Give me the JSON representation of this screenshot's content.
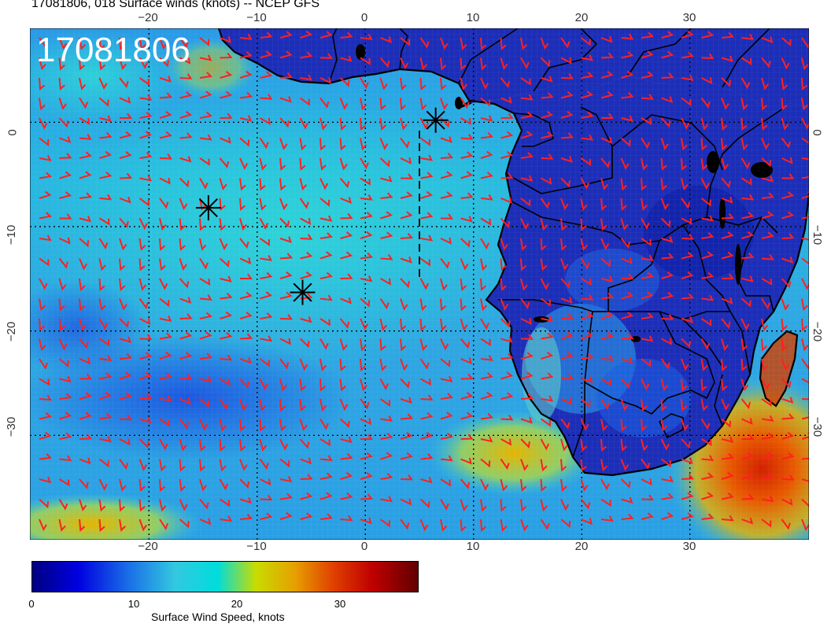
{
  "title": "17081806, 018 Surface winds (knots) -- NCEP GFS",
  "stamp": "17081806",
  "top_ticks": [
    "−20",
    "−10",
    "0",
    "10",
    "20",
    "30"
  ],
  "bottom_ticks": [
    "−20",
    "−10",
    "0",
    "10",
    "20",
    "30"
  ],
  "left_ticks": [
    "0",
    "−10",
    "−20",
    "−30"
  ],
  "right_ticks": [
    "0",
    "−10",
    "−20",
    "−30"
  ],
  "colorbar": {
    "label": "Surface Wind Speed, knots",
    "ticks": [
      "0",
      "10",
      "20",
      "30"
    ],
    "min": 0,
    "max": 38,
    "colors": [
      "#000080",
      "#0000e0",
      "#1a6ee6",
      "#33c8e0",
      "#00dcdc",
      "#c8dc00",
      "#e6a000",
      "#e04000",
      "#c00000",
      "#600000"
    ]
  },
  "map": {
    "lon_range": [
      -31,
      41
    ],
    "lat_range": [
      -40,
      9
    ],
    "wind_barb_color": "#ff2020",
    "markers": [
      "asterisk",
      "asterisk",
      "asterisk"
    ]
  }
}
